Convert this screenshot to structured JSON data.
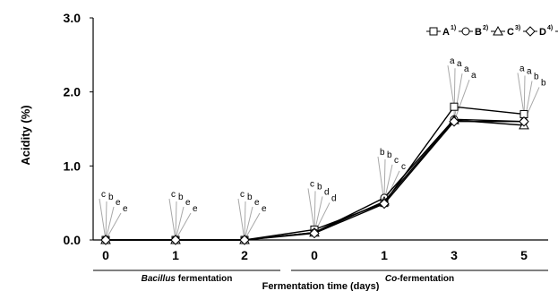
{
  "chart_data": {
    "type": "line",
    "xlabel": "Fermentation time (days)",
    "ylabel": "Acidity (%)",
    "ylim": [
      0,
      3.0
    ],
    "y_ticks": [
      "0.0",
      "1.0",
      "2.0",
      "3.0"
    ],
    "x_ticks": [
      "0",
      "1",
      "2",
      "0",
      "1",
      "3",
      "5"
    ],
    "groups": [
      {
        "label_italic": "Bacillus",
        "label_rest": " fermentation",
        "span": [
          0,
          2
        ]
      },
      {
        "label_italic": "Co",
        "label_rest": "-fermentation",
        "span": [
          3,
          6
        ]
      }
    ],
    "series": [
      {
        "name": "A",
        "sup": "1)",
        "marker": "square",
        "values": [
          0.0,
          0.0,
          0.0,
          0.14,
          0.5,
          1.8,
          1.7
        ]
      },
      {
        "name": "B",
        "sup": "2)",
        "marker": "circle",
        "values": [
          0.0,
          0.0,
          0.0,
          0.1,
          0.57,
          1.63,
          1.6
        ]
      },
      {
        "name": "C",
        "sup": "3)",
        "marker": "triangle",
        "values": [
          0.0,
          0.0,
          0.0,
          0.1,
          0.52,
          1.62,
          1.55
        ]
      },
      {
        "name": "D",
        "sup": "4)",
        "marker": "diamond",
        "values": [
          0.0,
          0.0,
          0.0,
          0.09,
          0.49,
          1.6,
          1.6
        ]
      }
    ],
    "significance_letters": [
      [
        "c",
        "b",
        "e",
        "e"
      ],
      [
        "c",
        "b",
        "e",
        "e"
      ],
      [
        "c",
        "b",
        "e",
        "e"
      ],
      [
        "c",
        "b",
        "d",
        "d"
      ],
      [
        "b",
        "b",
        "c",
        "c"
      ],
      [
        "a",
        "a",
        "a",
        "a"
      ],
      [
        "a",
        "a",
        "b",
        "b"
      ]
    ],
    "grid": false,
    "legend_position": "top-right"
  }
}
